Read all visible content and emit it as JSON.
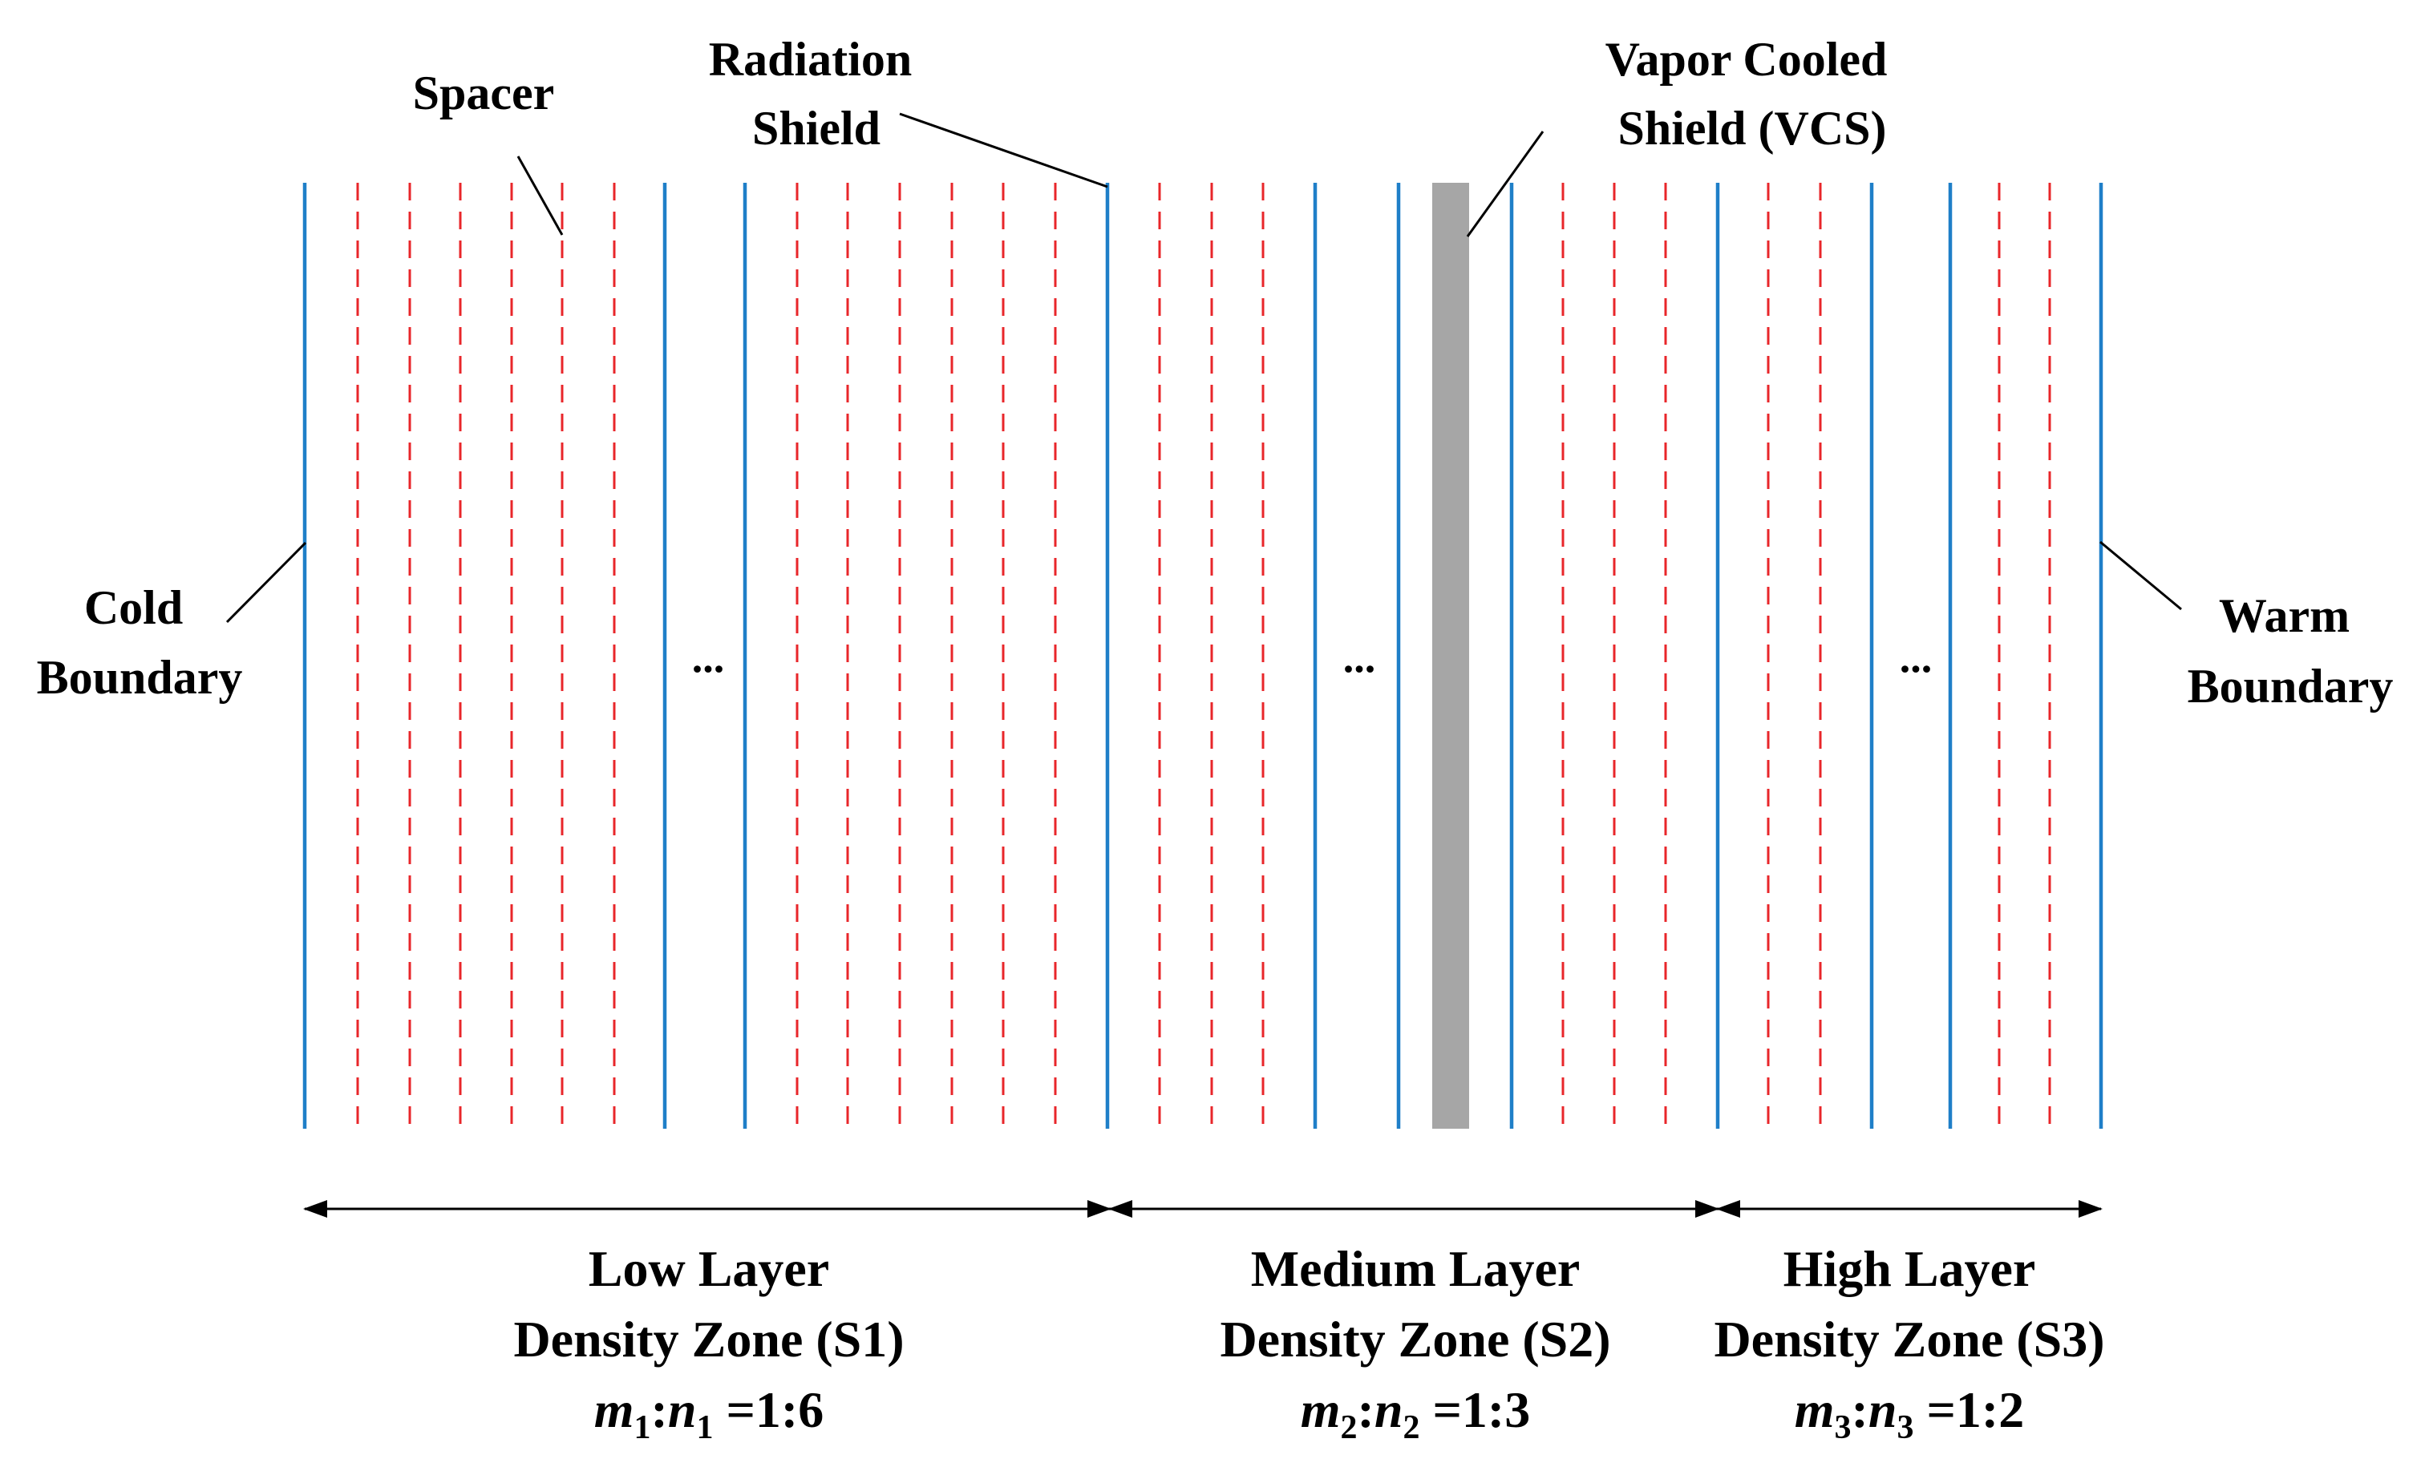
{
  "labels": {
    "spacer": "Spacer",
    "radiation_shield": [
      "Radiation",
      "Shield"
    ],
    "vcs": [
      "Vapor Cooled",
      "Shield (VCS)"
    ],
    "cold_boundary": [
      "Cold",
      "Boundary"
    ],
    "warm_boundary": [
      "Warm",
      "Boundary"
    ],
    "ellipsis": "..."
  },
  "zones": [
    {
      "id": "s1",
      "line1": "Low Layer",
      "line2": "Density Zone (S1)",
      "ratio": {
        "m": "m",
        "n": "n",
        "sub": "1",
        "sep": ":",
        "eq": " =1:6"
      }
    },
    {
      "id": "s2",
      "line1": "Medium Layer",
      "line2": "Density Zone (S2)",
      "ratio": {
        "m": "m",
        "n": "n",
        "sub": "2",
        "sep": ":",
        "eq": " =1:3"
      }
    },
    {
      "id": "s3",
      "line1": "High Layer",
      "line2": "Density Zone (S3)",
      "ratio": {
        "m": "m",
        "n": "n",
        "sub": "3",
        "sep": ":",
        "eq": " =1:2"
      }
    }
  ],
  "colors": {
    "shield": "#1f7fc8",
    "spacer": "#e8262a",
    "vcs": "#a6a6a6",
    "leader": "#000000"
  }
}
